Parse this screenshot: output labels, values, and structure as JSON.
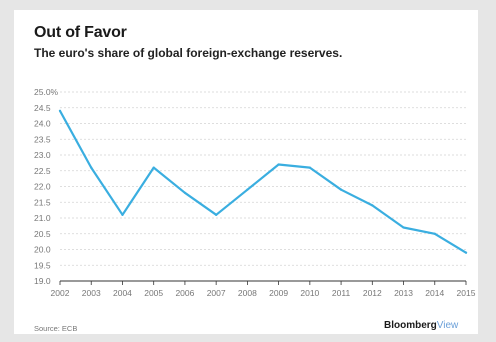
{
  "chart_data": {
    "type": "line",
    "title": "Out of Favor",
    "subtitle": "The euro's share of global foreign-exchange reserves.",
    "x": [
      "2002",
      "2003",
      "2004",
      "2005",
      "2006",
      "2007",
      "2008",
      "2009",
      "2010",
      "2011",
      "2012",
      "2013",
      "2014",
      "2015"
    ],
    "series": [
      {
        "values": [
          24.4,
          22.6,
          21.1,
          22.6,
          21.8,
          21.1,
          21.9,
          22.7,
          22.6,
          21.9,
          21.4,
          20.7,
          20.5,
          19.9
        ],
        "color": "#3aaee0"
      }
    ],
    "yticks": [
      "19.0",
      "19.5",
      "20.0",
      "20.5",
      "21.0",
      "21.5",
      "22.0",
      "22.5",
      "23.0",
      "23.5",
      "24.0",
      "24.5",
      "25.0%"
    ],
    "ylim": [
      19.0,
      25.0
    ],
    "grid": true,
    "legend": "none"
  },
  "source": "Source: ECB",
  "brand": {
    "part1": "Bloomberg",
    "part2": "View"
  }
}
